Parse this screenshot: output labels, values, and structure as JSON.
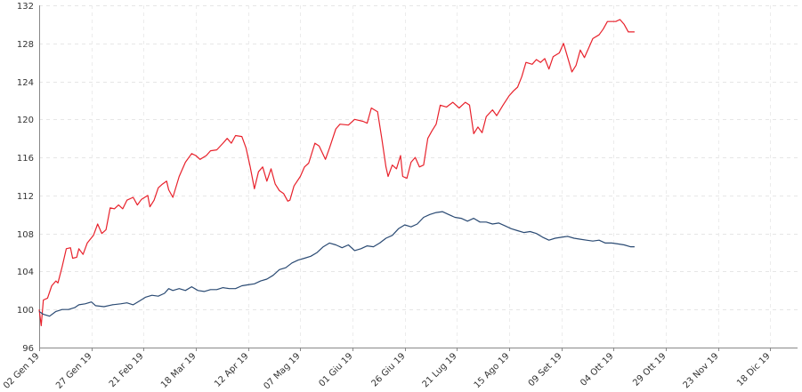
{
  "chart_data": {
    "type": "line",
    "title": "",
    "xlabel": "",
    "ylabel": "",
    "ylim": [
      96,
      132
    ],
    "yticks": [
      96,
      100,
      104,
      108,
      112,
      116,
      120,
      124,
      128,
      132
    ],
    "grid": true,
    "legend": "none",
    "x_ticks": [
      {
        "label": "02 Gen 19",
        "day": 0
      },
      {
        "label": "27 Gen 19",
        "day": 25
      },
      {
        "label": "21 Feb 19",
        "day": 50
      },
      {
        "label": "18 Mar 19",
        "day": 75
      },
      {
        "label": "12 Apr 19",
        "day": 100
      },
      {
        "label": "07 Mag 19",
        "day": 125
      },
      {
        "label": "01 Giu 19",
        "day": 150
      },
      {
        "label": "26 Giu 19",
        "day": 175
      },
      {
        "label": "21 Lug 19",
        "day": 200
      },
      {
        "label": "15 Ago 19",
        "day": 225
      },
      {
        "label": "09 Set 19",
        "day": 250
      },
      {
        "label": "04 Ott 19",
        "day": 275
      },
      {
        "label": "29 Ott 19",
        "day": 300
      },
      {
        "label": "23 Nov 19",
        "day": 325
      },
      {
        "label": "18 Dic 19",
        "day": 350
      }
    ],
    "x_end_day": 363,
    "series": [
      {
        "color": "#e8212b",
        "points": [
          [
            0,
            100
          ],
          [
            1,
            98.3
          ],
          [
            2,
            101
          ],
          [
            4,
            101.2
          ],
          [
            6,
            102.5
          ],
          [
            8,
            103
          ],
          [
            9,
            102.8
          ],
          [
            11,
            104.5
          ],
          [
            13,
            106.4
          ],
          [
            15,
            106.5
          ],
          [
            16,
            105.4
          ],
          [
            18,
            105.5
          ],
          [
            19,
            106.4
          ],
          [
            21,
            105.8
          ],
          [
            23,
            107
          ],
          [
            26,
            107.8
          ],
          [
            28,
            109
          ],
          [
            30,
            108
          ],
          [
            32,
            108.4
          ],
          [
            34,
            110.7
          ],
          [
            36,
            110.6
          ],
          [
            38,
            111
          ],
          [
            40,
            110.6
          ],
          [
            42,
            111.5
          ],
          [
            45,
            111.8
          ],
          [
            47,
            111
          ],
          [
            49,
            111.6
          ],
          [
            52,
            112
          ],
          [
            53,
            110.8
          ],
          [
            55,
            111.5
          ],
          [
            57,
            112.8
          ],
          [
            59,
            113.2
          ],
          [
            61,
            113.5
          ],
          [
            62,
            112.6
          ],
          [
            64,
            111.8
          ],
          [
            67,
            114
          ],
          [
            70,
            115.5
          ],
          [
            73,
            116.4
          ],
          [
            75,
            116.2
          ],
          [
            77,
            115.8
          ],
          [
            80,
            116.2
          ],
          [
            82,
            116.7
          ],
          [
            85,
            116.8
          ],
          [
            88,
            117.5
          ],
          [
            90,
            118
          ],
          [
            92,
            117.5
          ],
          [
            94,
            118.3
          ],
          [
            97,
            118.2
          ],
          [
            99,
            117
          ],
          [
            101,
            115
          ],
          [
            103,
            112.7
          ],
          [
            105,
            114.5
          ],
          [
            107,
            115
          ],
          [
            109,
            113.5
          ],
          [
            111,
            114.8
          ],
          [
            113,
            113.2
          ],
          [
            115,
            112.5
          ],
          [
            117,
            112.2
          ],
          [
            119,
            111.4
          ],
          [
            120,
            111.5
          ],
          [
            122,
            113
          ],
          [
            125,
            114
          ],
          [
            127,
            115
          ],
          [
            129,
            115.4
          ],
          [
            132,
            117.5
          ],
          [
            134,
            117.2
          ],
          [
            137,
            115.8
          ],
          [
            139,
            117
          ],
          [
            142,
            119
          ],
          [
            144,
            119.5
          ],
          [
            148,
            119.4
          ],
          [
            151,
            120
          ],
          [
            155,
            119.8
          ],
          [
            157,
            119.6
          ],
          [
            159,
            121.2
          ],
          [
            162,
            120.8
          ],
          [
            164,
            118
          ],
          [
            166,
            115
          ],
          [
            167,
            114
          ],
          [
            169,
            115.2
          ],
          [
            171,
            114.8
          ],
          [
            173,
            116.2
          ],
          [
            174,
            114
          ],
          [
            176,
            113.8
          ],
          [
            178,
            115.5
          ],
          [
            180,
            116
          ],
          [
            182,
            115
          ],
          [
            184,
            115.2
          ],
          [
            186,
            118
          ],
          [
            188,
            118.8
          ],
          [
            190,
            119.5
          ],
          [
            192,
            121.5
          ],
          [
            195,
            121.3
          ],
          [
            198,
            121.8
          ],
          [
            201,
            121.2
          ],
          [
            204,
            121.8
          ],
          [
            206,
            121.5
          ],
          [
            208,
            118.5
          ],
          [
            210,
            119.2
          ],
          [
            212,
            118.6
          ],
          [
            214,
            120.3
          ],
          [
            217,
            121
          ],
          [
            219,
            120.4
          ],
          [
            222,
            121.5
          ],
          [
            225,
            122.5
          ],
          [
            227,
            123
          ],
          [
            229,
            123.4
          ],
          [
            231,
            124.5
          ],
          [
            233,
            126
          ],
          [
            236,
            125.8
          ],
          [
            238,
            126.3
          ],
          [
            240,
            126
          ],
          [
            242,
            126.4
          ],
          [
            244,
            125.3
          ],
          [
            246,
            126.6
          ],
          [
            249,
            127
          ],
          [
            251,
            128
          ],
          [
            253,
            126.5
          ],
          [
            255,
            125
          ],
          [
            257,
            125.7
          ],
          [
            259,
            127.3
          ],
          [
            261,
            126.5
          ],
          [
            263,
            127.5
          ],
          [
            265,
            128.5
          ],
          [
            268,
            128.9
          ],
          [
            270,
            129.5
          ],
          [
            272,
            130.3
          ],
          [
            276,
            130.3
          ],
          [
            278,
            130.5
          ],
          [
            280,
            130
          ],
          [
            282,
            129.2
          ],
          [
            285,
            129.2
          ]
        ]
      },
      {
        "color": "#2a4a73",
        "points": [
          [
            0,
            99.8
          ],
          [
            2,
            99.5
          ],
          [
            5,
            99.3
          ],
          [
            8,
            99.8
          ],
          [
            11,
            100
          ],
          [
            14,
            100
          ],
          [
            17,
            100.2
          ],
          [
            19,
            100.5
          ],
          [
            22,
            100.6
          ],
          [
            25,
            100.8
          ],
          [
            27,
            100.4
          ],
          [
            31,
            100.3
          ],
          [
            35,
            100.5
          ],
          [
            39,
            100.6
          ],
          [
            42,
            100.7
          ],
          [
            45,
            100.5
          ],
          [
            48,
            100.9
          ],
          [
            51,
            101.3
          ],
          [
            54,
            101.5
          ],
          [
            57,
            101.4
          ],
          [
            60,
            101.7
          ],
          [
            62,
            102.2
          ],
          [
            64,
            102
          ],
          [
            67,
            102.2
          ],
          [
            70,
            102
          ],
          [
            73,
            102.4
          ],
          [
            76,
            102
          ],
          [
            79,
            101.9
          ],
          [
            82,
            102.1
          ],
          [
            85,
            102.1
          ],
          [
            88,
            102.3
          ],
          [
            91,
            102.2
          ],
          [
            94,
            102.2
          ],
          [
            97,
            102.5
          ],
          [
            100,
            102.6
          ],
          [
            103,
            102.7
          ],
          [
            106,
            103
          ],
          [
            109,
            103.2
          ],
          [
            112,
            103.6
          ],
          [
            115,
            104.2
          ],
          [
            118,
            104.4
          ],
          [
            121,
            104.9
          ],
          [
            124,
            105.2
          ],
          [
            127,
            105.4
          ],
          [
            130,
            105.6
          ],
          [
            133,
            106
          ],
          [
            136,
            106.6
          ],
          [
            139,
            107
          ],
          [
            142,
            106.8
          ],
          [
            145,
            106.5
          ],
          [
            148,
            106.8
          ],
          [
            151,
            106.2
          ],
          [
            154,
            106.4
          ],
          [
            157,
            106.7
          ],
          [
            160,
            106.6
          ],
          [
            163,
            107
          ],
          [
            166,
            107.5
          ],
          [
            169,
            107.8
          ],
          [
            172,
            108.5
          ],
          [
            175,
            108.9
          ],
          [
            178,
            108.7
          ],
          [
            181,
            109
          ],
          [
            184,
            109.7
          ],
          [
            187,
            110
          ],
          [
            190,
            110.2
          ],
          [
            193,
            110.3
          ],
          [
            196,
            110
          ],
          [
            199,
            109.7
          ],
          [
            202,
            109.6
          ],
          [
            205,
            109.3
          ],
          [
            208,
            109.6
          ],
          [
            211,
            109.2
          ],
          [
            214,
            109.2
          ],
          [
            217,
            109
          ],
          [
            220,
            109.1
          ],
          [
            223,
            108.8
          ],
          [
            226,
            108.5
          ],
          [
            229,
            108.3
          ],
          [
            232,
            108.1
          ],
          [
            235,
            108.2
          ],
          [
            238,
            108
          ],
          [
            241,
            107.6
          ],
          [
            244,
            107.3
          ],
          [
            247,
            107.5
          ],
          [
            250,
            107.6
          ],
          [
            253,
            107.7
          ],
          [
            256,
            107.5
          ],
          [
            259,
            107.4
          ],
          [
            262,
            107.3
          ],
          [
            265,
            107.2
          ],
          [
            268,
            107.3
          ],
          [
            271,
            107
          ],
          [
            274,
            107
          ],
          [
            277,
            106.9
          ],
          [
            280,
            106.8
          ],
          [
            283,
            106.6
          ],
          [
            285,
            106.6
          ]
        ]
      }
    ]
  }
}
